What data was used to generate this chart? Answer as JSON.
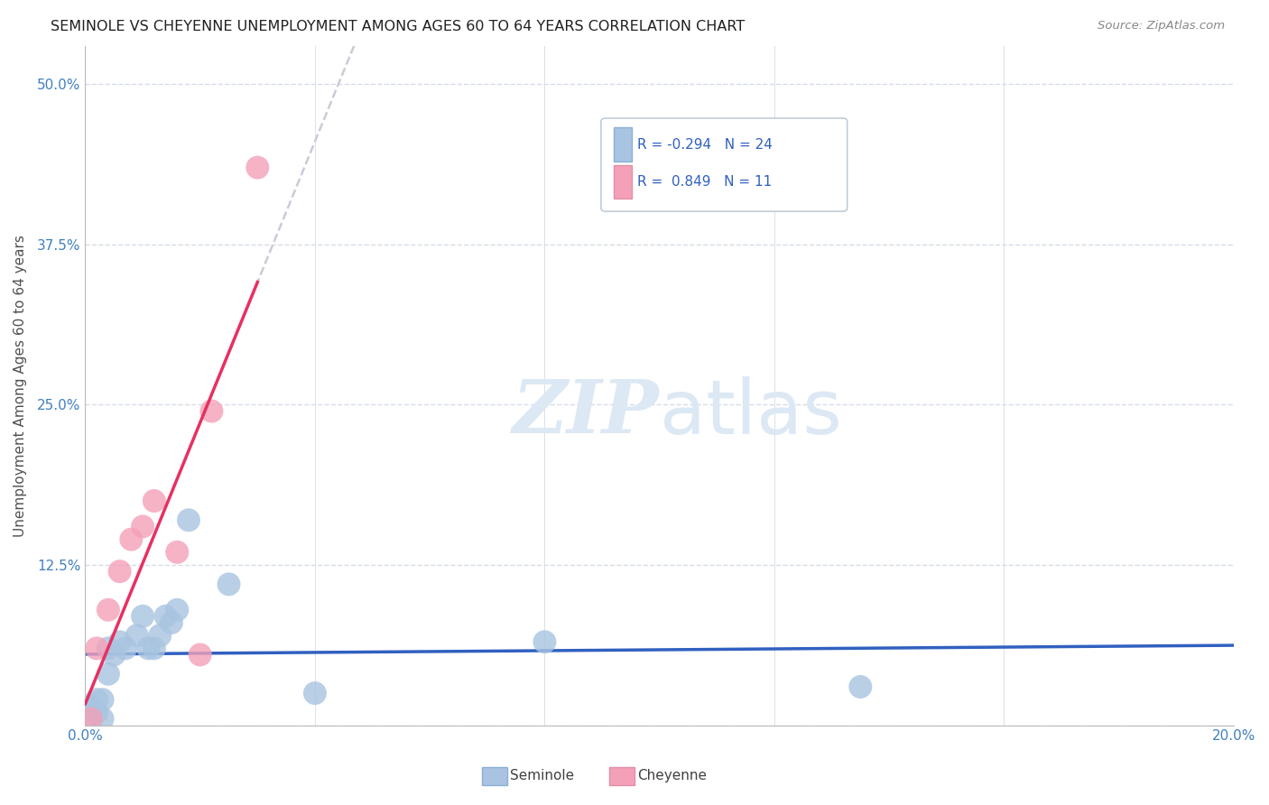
{
  "title": "SEMINOLE VS CHEYENNE UNEMPLOYMENT AMONG AGES 60 TO 64 YEARS CORRELATION CHART",
  "source": "Source: ZipAtlas.com",
  "ylabel": "Unemployment Among Ages 60 to 64 years",
  "xlim": [
    0.0,
    0.2
  ],
  "ylim": [
    0.0,
    0.53
  ],
  "xticks": [
    0.0,
    0.04,
    0.08,
    0.12,
    0.16,
    0.2
  ],
  "xticklabels": [
    "0.0%",
    "",
    "",
    "",
    "",
    "20.0%"
  ],
  "yticks": [
    0.0,
    0.125,
    0.25,
    0.375,
    0.5
  ],
  "yticklabels": [
    "",
    "12.5%",
    "25.0%",
    "37.5%",
    "50.0%"
  ],
  "seminole_x": [
    0.001,
    0.001,
    0.002,
    0.002,
    0.003,
    0.003,
    0.004,
    0.004,
    0.005,
    0.006,
    0.007,
    0.009,
    0.01,
    0.011,
    0.012,
    0.013,
    0.014,
    0.015,
    0.016,
    0.018,
    0.025,
    0.04,
    0.08,
    0.135
  ],
  "seminole_y": [
    0.005,
    0.015,
    0.01,
    0.02,
    0.005,
    0.02,
    0.04,
    0.06,
    0.055,
    0.065,
    0.06,
    0.07,
    0.085,
    0.06,
    0.06,
    0.07,
    0.085,
    0.08,
    0.09,
    0.16,
    0.11,
    0.025,
    0.065,
    0.03
  ],
  "cheyenne_x": [
    0.001,
    0.002,
    0.004,
    0.006,
    0.008,
    0.01,
    0.012,
    0.016,
    0.02,
    0.022,
    0.03
  ],
  "cheyenne_y": [
    0.005,
    0.06,
    0.09,
    0.12,
    0.145,
    0.155,
    0.175,
    0.135,
    0.055,
    0.245,
    0.435
  ],
  "seminole_color": "#a8c4e0",
  "cheyenne_color": "#f4a0b8",
  "seminole_R": -0.294,
  "seminole_N": 24,
  "cheyenne_R": 0.849,
  "cheyenne_N": 11,
  "trendline_seminole_color": "#3060c0",
  "trendline_cheyenne_color": "#e83060",
  "trendline_extended_color": "#d0c8d8",
  "legend_R1_color": "#3060c0",
  "legend_N1_color": "#3060c0",
  "legend_R2_color": "#3060c0",
  "legend_N2_color": "#3060c0",
  "watermark_color": "#dce8f4",
  "background_color": "#ffffff",
  "grid_color": "#d4dce8",
  "title_color": "#202020",
  "axis_label_color": "#505050",
  "tick_color": "#4080c0"
}
